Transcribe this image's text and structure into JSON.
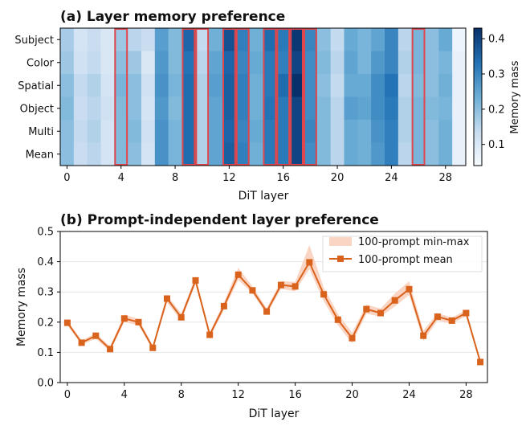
{
  "chart_data": [
    {
      "type": "heatmap",
      "title": "(a) Layer memory preference",
      "xlabel": "DiT layer",
      "ylabel": "",
      "rows": [
        "Subject",
        "Color",
        "Spatial",
        "Object",
        "Multi",
        "Mean"
      ],
      "x_ticks": [
        "0",
        "4",
        "8",
        "12",
        "16",
        "20",
        "24",
        "28"
      ],
      "layers": [
        0,
        1,
        2,
        3,
        4,
        5,
        6,
        7,
        8,
        9,
        10,
        11,
        12,
        13,
        14,
        15,
        16,
        17,
        18,
        19,
        20,
        21,
        22,
        23,
        24,
        25,
        26,
        27,
        28,
        29
      ],
      "highlighted_layers": [
        4,
        9,
        10,
        12,
        13,
        15,
        16,
        17,
        18,
        26
      ],
      "colorbar": {
        "label": "Memory mass",
        "min": 0.04,
        "max": 0.43,
        "ticks": [
          "0.1",
          "0.2",
          "0.3",
          "0.4"
        ]
      },
      "values": [
        [
          0.17,
          0.11,
          0.13,
          0.1,
          0.18,
          0.15,
          0.13,
          0.26,
          0.21,
          0.35,
          0.14,
          0.23,
          0.38,
          0.31,
          0.23,
          0.34,
          0.32,
          0.42,
          0.3,
          0.2,
          0.14,
          0.24,
          0.22,
          0.25,
          0.3,
          0.15,
          0.22,
          0.2,
          0.24,
          0.06
        ],
        [
          0.18,
          0.12,
          0.14,
          0.1,
          0.2,
          0.18,
          0.1,
          0.27,
          0.21,
          0.33,
          0.15,
          0.25,
          0.35,
          0.3,
          0.24,
          0.32,
          0.31,
          0.4,
          0.29,
          0.21,
          0.15,
          0.25,
          0.22,
          0.27,
          0.3,
          0.16,
          0.22,
          0.2,
          0.22,
          0.07
        ],
        [
          0.2,
          0.14,
          0.16,
          0.11,
          0.22,
          0.2,
          0.12,
          0.28,
          0.22,
          0.34,
          0.16,
          0.26,
          0.36,
          0.31,
          0.23,
          0.32,
          0.34,
          0.43,
          0.29,
          0.2,
          0.14,
          0.24,
          0.24,
          0.29,
          0.33,
          0.15,
          0.21,
          0.2,
          0.23,
          0.07
        ],
        [
          0.21,
          0.13,
          0.15,
          0.12,
          0.21,
          0.2,
          0.11,
          0.27,
          0.21,
          0.34,
          0.16,
          0.25,
          0.36,
          0.31,
          0.23,
          0.33,
          0.32,
          0.4,
          0.29,
          0.21,
          0.15,
          0.26,
          0.25,
          0.29,
          0.32,
          0.16,
          0.22,
          0.21,
          0.22,
          0.07
        ],
        [
          0.2,
          0.14,
          0.16,
          0.11,
          0.21,
          0.21,
          0.12,
          0.28,
          0.22,
          0.34,
          0.16,
          0.25,
          0.35,
          0.3,
          0.24,
          0.32,
          0.32,
          0.4,
          0.3,
          0.21,
          0.15,
          0.24,
          0.23,
          0.28,
          0.31,
          0.16,
          0.22,
          0.2,
          0.23,
          0.07
        ],
        [
          0.2,
          0.13,
          0.15,
          0.11,
          0.21,
          0.2,
          0.11,
          0.28,
          0.22,
          0.34,
          0.16,
          0.25,
          0.36,
          0.31,
          0.23,
          0.32,
          0.32,
          0.4,
          0.29,
          0.21,
          0.15,
          0.24,
          0.23,
          0.27,
          0.31,
          0.15,
          0.22,
          0.2,
          0.23,
          0.07
        ]
      ]
    },
    {
      "type": "line",
      "title": "(b) Prompt-independent layer preference",
      "xlabel": "DiT layer",
      "ylabel": "Memory mass",
      "xlim": [
        -0.5,
        29.5
      ],
      "ylim": [
        0.0,
        0.5
      ],
      "x_ticks": [
        "0",
        "4",
        "8",
        "12",
        "16",
        "20",
        "24",
        "28"
      ],
      "y_ticks": [
        "0.0",
        "0.1",
        "0.2",
        "0.3",
        "0.4",
        "0.5"
      ],
      "grid": "horizontal",
      "legend_position": "top-right",
      "x": [
        0,
        1,
        2,
        3,
        4,
        5,
        6,
        7,
        8,
        9,
        10,
        11,
        12,
        13,
        14,
        15,
        16,
        17,
        18,
        19,
        20,
        21,
        22,
        23,
        24,
        25,
        26,
        27,
        28,
        29
      ],
      "series": [
        {
          "name": "100-prompt mean",
          "color": "#d9621c",
          "values": [
            0.198,
            0.132,
            0.155,
            0.111,
            0.212,
            0.2,
            0.115,
            0.278,
            0.216,
            0.338,
            0.158,
            0.253,
            0.357,
            0.305,
            0.235,
            0.323,
            0.318,
            0.398,
            0.292,
            0.208,
            0.147,
            0.243,
            0.23,
            0.272,
            0.309,
            0.155,
            0.218,
            0.205,
            0.23,
            0.068
          ]
        }
      ],
      "band": {
        "name": "100-prompt min-max",
        "color": "#fbd5c3",
        "min": [
          0.19,
          0.125,
          0.145,
          0.103,
          0.2,
          0.19,
          0.108,
          0.265,
          0.205,
          0.325,
          0.15,
          0.24,
          0.34,
          0.295,
          0.225,
          0.31,
          0.302,
          0.375,
          0.27,
          0.19,
          0.13,
          0.228,
          0.218,
          0.252,
          0.29,
          0.138,
          0.205,
          0.195,
          0.22,
          0.062
        ],
        "max": [
          0.206,
          0.14,
          0.163,
          0.12,
          0.225,
          0.21,
          0.123,
          0.29,
          0.228,
          0.35,
          0.167,
          0.266,
          0.38,
          0.318,
          0.246,
          0.336,
          0.333,
          0.455,
          0.315,
          0.228,
          0.165,
          0.258,
          0.245,
          0.295,
          0.335,
          0.172,
          0.23,
          0.215,
          0.24,
          0.075
        ]
      }
    }
  ]
}
